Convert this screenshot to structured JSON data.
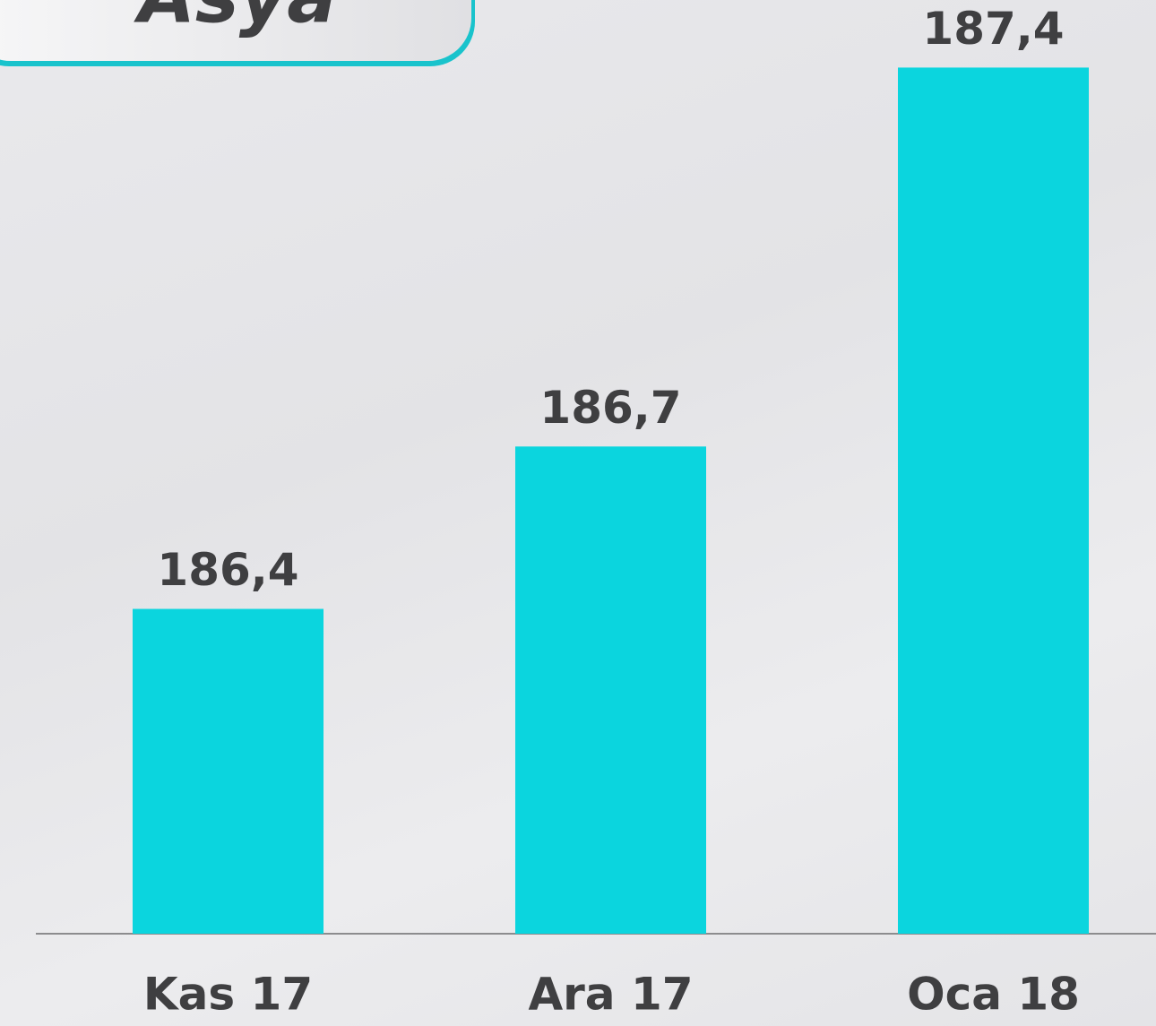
{
  "chart_data": {
    "type": "bar",
    "title": "Asya",
    "categories": [
      "Kas 17",
      "Ara 17",
      "Oca 18"
    ],
    "values": [
      186.4,
      186.7,
      187.4
    ],
    "value_labels": [
      "186,4",
      "186,7",
      "187,4"
    ],
    "color": "#0bd5de",
    "ylim": [
      185.8,
      187.5
    ]
  }
}
